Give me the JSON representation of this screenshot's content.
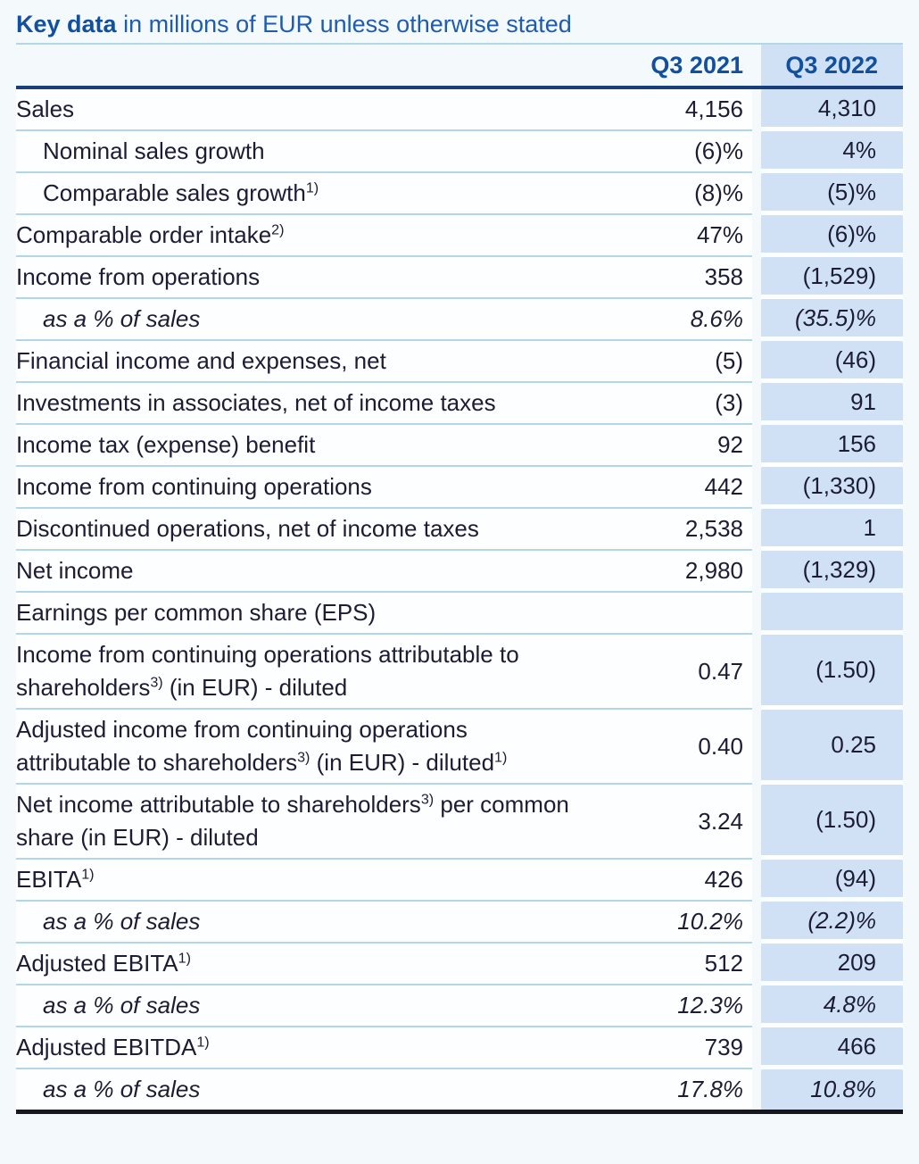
{
  "title": {
    "bold": "Key data",
    "rest": " in millions of EUR unless otherwise stated"
  },
  "colors": {
    "accent_blue": "#11509f",
    "title_rest_blue": "#1f5cb0",
    "highlight_cell_blue": "#d0e1f5",
    "row_separator": "#b3d6e9",
    "header_rule_navy": "#173f7c",
    "bottom_rule": "#17171f",
    "body_text": "#1c1c35",
    "page_background": "#f4f9fc"
  },
  "table": {
    "columns": [
      "Q3 2021",
      "Q3 2022"
    ],
    "rows": [
      {
        "label": [
          {
            "text": "Sales"
          }
        ],
        "v2021": "4,156",
        "v2022": "4,310",
        "indent": false,
        "italic": false
      },
      {
        "label": [
          {
            "text": "Nominal sales growth"
          }
        ],
        "v2021": "(6)%",
        "v2022": "4%",
        "indent": true,
        "italic": false
      },
      {
        "label": [
          {
            "text": "Comparable sales growth"
          },
          {
            "sup": "1)"
          }
        ],
        "v2021": "(8)%",
        "v2022": "(5)%",
        "indent": true,
        "italic": false
      },
      {
        "label": [
          {
            "text": "Comparable order intake"
          },
          {
            "sup": "2)"
          }
        ],
        "v2021": "47%",
        "v2022": "(6)%",
        "indent": false,
        "italic": false
      },
      {
        "label": [
          {
            "text": "Income from operations"
          }
        ],
        "v2021": "358",
        "v2022": "(1,529)",
        "indent": false,
        "italic": false
      },
      {
        "label": [
          {
            "text": "as a % of sales"
          }
        ],
        "v2021": "8.6%",
        "v2022": "(35.5)%",
        "indent": true,
        "italic": true
      },
      {
        "label": [
          {
            "text": "Financial income and expenses, net"
          }
        ],
        "v2021": "(5)",
        "v2022": "(46)",
        "indent": false,
        "italic": false
      },
      {
        "label": [
          {
            "text": "Investments in associates, net of income taxes"
          }
        ],
        "v2021": "(3)",
        "v2022": "91",
        "indent": false,
        "italic": false
      },
      {
        "label": [
          {
            "text": "Income tax (expense) benefit"
          }
        ],
        "v2021": "92",
        "v2022": "156",
        "indent": false,
        "italic": false
      },
      {
        "label": [
          {
            "text": "Income from continuing operations"
          }
        ],
        "v2021": "442",
        "v2022": "(1,330)",
        "indent": false,
        "italic": false
      },
      {
        "label": [
          {
            "text": "Discontinued operations, net of income taxes"
          }
        ],
        "v2021": "2,538",
        "v2022": "1",
        "indent": false,
        "italic": false
      },
      {
        "label": [
          {
            "text": "Net income"
          }
        ],
        "v2021": "2,980",
        "v2022": "(1,329)",
        "indent": false,
        "italic": false
      },
      {
        "label": [
          {
            "text": "Earnings per common share (EPS)"
          }
        ],
        "v2021": "",
        "v2022": "",
        "indent": false,
        "italic": false
      },
      {
        "label": [
          {
            "text": "Income from continuing operations attributable to shareholders"
          },
          {
            "sup": "3)"
          },
          {
            "text": " (in EUR) - diluted"
          }
        ],
        "v2021": "0.47",
        "v2022": "(1.50)",
        "indent": false,
        "italic": false
      },
      {
        "label": [
          {
            "text": "Adjusted income from continuing operations attributable to shareholders"
          },
          {
            "sup": "3)"
          },
          {
            "text": " (in EUR) - diluted"
          },
          {
            "sup": "1)"
          }
        ],
        "v2021": "0.40",
        "v2022": "0.25",
        "indent": false,
        "italic": false
      },
      {
        "label": [
          {
            "text": "Net income attributable to shareholders"
          },
          {
            "sup": "3)"
          },
          {
            "text": " per common share (in EUR) - diluted"
          }
        ],
        "v2021": "3.24",
        "v2022": "(1.50)",
        "indent": false,
        "italic": false
      },
      {
        "label": [
          {
            "text": "EBITA"
          },
          {
            "sup": "1)"
          }
        ],
        "v2021": "426",
        "v2022": "(94)",
        "indent": false,
        "italic": false
      },
      {
        "label": [
          {
            "text": "as a % of sales"
          }
        ],
        "v2021": "10.2%",
        "v2022": "(2.2)%",
        "indent": true,
        "italic": true
      },
      {
        "label": [
          {
            "text": "Adjusted EBITA"
          },
          {
            "sup": "1)"
          }
        ],
        "v2021": "512",
        "v2022": "209",
        "indent": false,
        "italic": false
      },
      {
        "label": [
          {
            "text": "as a % of sales"
          }
        ],
        "v2021": "12.3%",
        "v2022": "4.8%",
        "indent": true,
        "italic": true
      },
      {
        "label": [
          {
            "text": "Adjusted EBITDA"
          },
          {
            "sup": "1)"
          }
        ],
        "v2021": "739",
        "v2022": "466",
        "indent": false,
        "italic": false
      },
      {
        "label": [
          {
            "text": "as a % of sales"
          }
        ],
        "v2021": "17.8%",
        "v2022": "10.8%",
        "indent": true,
        "italic": true
      }
    ]
  }
}
